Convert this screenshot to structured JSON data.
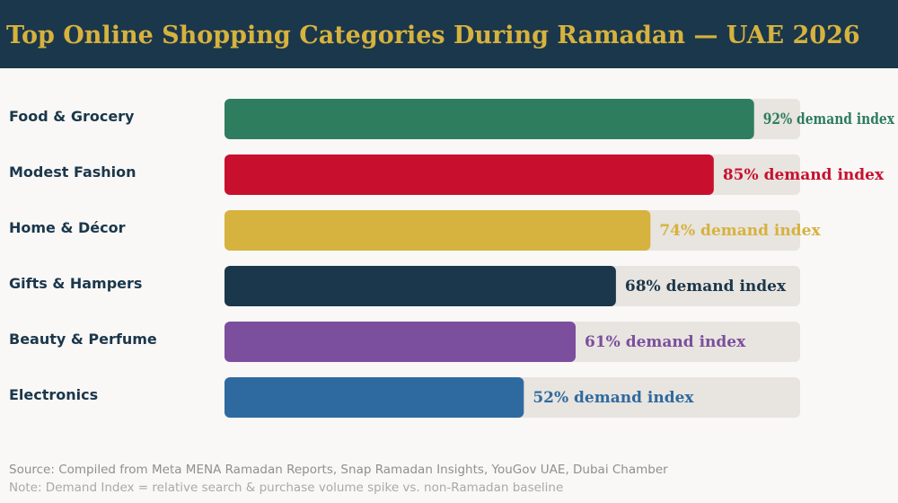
{
  "chart_data": {
    "type": "bar",
    "orientation": "horizontal",
    "title": "Top Online Shopping Categories During Ramadan — UAE 2026",
    "categories": [
      "Food & Grocery",
      "Modest Fashion",
      "Home & Décor",
      "Gifts & Hampers",
      "Beauty & Perfume",
      "Electronics"
    ],
    "values": [
      92,
      85,
      74,
      68,
      61,
      52
    ],
    "value_labels": [
      "92% demand index",
      "85% demand index",
      "74% demand index",
      "68% demand index",
      "61% demand index",
      "52% demand index"
    ],
    "colors": [
      "#2e7d5e",
      "#c8102e",
      "#d6b23e",
      "#1b374b",
      "#7b4f9d",
      "#2e6a9f"
    ],
    "track_color": "#e8e4df",
    "xlim": [
      0,
      100
    ],
    "xlabel": "",
    "ylabel": "",
    "grid": false,
    "legend": "none"
  },
  "footer": {
    "source": "Source: Compiled from Meta MENA Ramadan Reports, Snap Ramadan Insights, YouGov UAE, Dubai Chamber",
    "note": "Note: Demand Index = relative search & purchase volume spike vs. non-Ramadan baseline"
  }
}
